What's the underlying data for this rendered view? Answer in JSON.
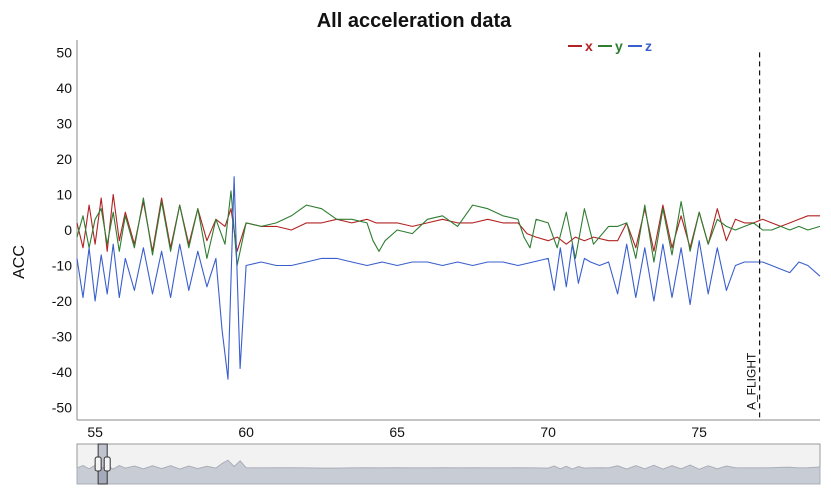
{
  "chart_data": {
    "type": "line",
    "title": "All acceleration data",
    "xlabel": "",
    "ylabel": "ACC",
    "xlim": [
      54.4,
      79.0
    ],
    "ylim": [
      -53.5,
      53.5
    ],
    "x_ticks": [
      55,
      60,
      65,
      70,
      75
    ],
    "y_ticks": [
      50,
      40,
      30,
      20,
      10,
      0,
      -10,
      -20,
      -30,
      -40,
      -50
    ],
    "legend_position": "top-center",
    "series": [
      {
        "name": "x",
        "color": "#b22222",
        "x": [
          54.4,
          54.6,
          54.8,
          55.0,
          55.2,
          55.4,
          55.6,
          55.8,
          56.0,
          56.3,
          56.6,
          56.9,
          57.2,
          57.5,
          57.8,
          58.1,
          58.4,
          58.7,
          59.0,
          59.3,
          59.5,
          59.7,
          60.0,
          60.5,
          61.0,
          61.5,
          62.0,
          62.5,
          63.0,
          63.5,
          64.0,
          64.3,
          64.6,
          65.0,
          65.5,
          66.0,
          66.5,
          67.0,
          67.5,
          68.0,
          68.5,
          69.0,
          69.3,
          69.6,
          70.0,
          70.3,
          70.6,
          70.9,
          71.2,
          71.5,
          72.0,
          72.3,
          72.6,
          72.9,
          73.2,
          73.5,
          73.8,
          74.1,
          74.4,
          74.7,
          75.0,
          75.3,
          75.6,
          75.9,
          76.2,
          76.5,
          76.8,
          77.1,
          77.4,
          77.7,
          78.0,
          78.3,
          78.6,
          79.0
        ],
        "y": [
          2,
          -5,
          7,
          -4,
          9,
          -6,
          10,
          -3,
          5,
          -4,
          8,
          -6,
          9,
          -5,
          7,
          -4,
          6,
          -3,
          3,
          1,
          6,
          -6,
          2,
          1,
          1,
          0,
          2,
          2,
          3,
          2,
          3,
          2,
          2,
          2,
          1,
          2,
          3,
          2,
          2,
          3,
          2,
          2,
          -1,
          -2,
          -3,
          -2,
          -4,
          -2,
          -3,
          -2,
          -3,
          -3,
          2,
          -5,
          6,
          -6,
          7,
          -5,
          4,
          -5,
          5,
          -4,
          6,
          -3,
          3,
          2,
          2,
          3,
          2,
          1,
          2,
          3,
          4,
          4
        ]
      },
      {
        "name": "y",
        "color": "#2e7d32",
        "x": [
          54.4,
          54.6,
          54.8,
          55.0,
          55.2,
          55.4,
          55.6,
          55.8,
          56.0,
          56.3,
          56.6,
          56.9,
          57.2,
          57.5,
          57.8,
          58.1,
          58.4,
          58.7,
          59.0,
          59.3,
          59.5,
          59.7,
          60.0,
          60.5,
          61.0,
          61.5,
          62.0,
          62.5,
          63.0,
          63.5,
          64.0,
          64.2,
          64.4,
          64.6,
          65.0,
          65.5,
          66.0,
          66.5,
          67.0,
          67.5,
          68.0,
          68.5,
          69.0,
          69.2,
          69.4,
          69.6,
          70.0,
          70.3,
          70.6,
          70.9,
          71.2,
          71.5,
          72.0,
          72.3,
          72.6,
          72.9,
          73.2,
          73.5,
          73.8,
          74.1,
          74.4,
          74.7,
          75.0,
          75.3,
          75.6,
          75.9,
          76.2,
          76.5,
          76.8,
          77.1,
          77.4,
          77.7,
          78.0,
          78.3,
          78.6,
          79.0
        ],
        "y": [
          -2,
          4,
          -5,
          3,
          6,
          -4,
          5,
          -6,
          4,
          -5,
          9,
          -7,
          8,
          -6,
          7,
          -5,
          6,
          -8,
          3,
          -4,
          11,
          -10,
          2,
          1,
          2,
          4,
          7,
          6,
          3,
          3,
          2,
          -3,
          -6,
          -3,
          0,
          -1,
          3,
          4,
          1,
          7,
          6,
          4,
          3,
          -2,
          -5,
          3,
          2,
          -5,
          5,
          -8,
          6,
          -4,
          1,
          1,
          2,
          -8,
          7,
          -9,
          6,
          -7,
          8,
          -6,
          5,
          -4,
          3,
          1,
          0,
          1,
          2,
          0,
          0,
          1,
          0,
          1,
          0,
          1
        ]
      },
      {
        "name": "z",
        "color": "#3a5fcd",
        "x": [
          54.4,
          54.6,
          54.8,
          55.0,
          55.2,
          55.4,
          55.6,
          55.8,
          56.0,
          56.3,
          56.6,
          56.9,
          57.2,
          57.5,
          57.8,
          58.1,
          58.4,
          58.7,
          59.0,
          59.2,
          59.4,
          59.6,
          59.8,
          60.0,
          60.5,
          61.0,
          61.5,
          62.0,
          62.5,
          63.0,
          63.5,
          64.0,
          64.5,
          65.0,
          65.5,
          66.0,
          66.5,
          67.0,
          67.5,
          68.0,
          68.5,
          69.0,
          69.5,
          70.0,
          70.2,
          70.4,
          70.6,
          70.8,
          71.0,
          71.2,
          71.4,
          71.7,
          72.0,
          72.3,
          72.6,
          72.9,
          73.2,
          73.5,
          73.8,
          74.1,
          74.4,
          74.7,
          75.0,
          75.3,
          75.6,
          75.9,
          76.2,
          76.5,
          76.8,
          77.1,
          77.4,
          77.7,
          78.0,
          78.3,
          78.6,
          79.0
        ],
        "y": [
          -8,
          -19,
          -5,
          -20,
          -7,
          -18,
          -4,
          -19,
          -8,
          -17,
          -5,
          -18,
          -6,
          -19,
          -4,
          -17,
          -6,
          -16,
          -8,
          -28,
          -42,
          15,
          -39,
          -10,
          -9,
          -10,
          -10,
          -9,
          -8,
          -8,
          -9,
          -10,
          -9,
          -10,
          -9,
          -9,
          -10,
          -9,
          -10,
          -9,
          -9,
          -10,
          -9,
          -8,
          -17,
          -5,
          -16,
          -4,
          -15,
          -8,
          -9,
          -10,
          -9,
          -18,
          -4,
          -19,
          -5,
          -20,
          -4,
          -19,
          -5,
          -21,
          -3,
          -18,
          -5,
          -17,
          -10,
          -9,
          -9,
          -9,
          -10,
          -11,
          -12,
          -9,
          -10,
          -13
        ]
      }
    ],
    "annotations": [
      {
        "type": "vertical-line",
        "x": 77.0,
        "label": "A_FLIGHT",
        "style": "dashed"
      }
    ],
    "navigator": {
      "x_range": [
        54.4,
        79.0
      ],
      "selected_range": [
        55.1,
        55.4
      ]
    }
  }
}
